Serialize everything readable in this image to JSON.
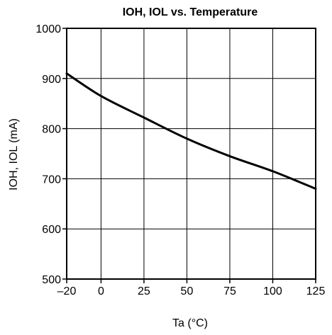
{
  "chart_data": {
    "type": "line",
    "title": "IOH, IOL vs. Temperature",
    "xlabel": "Ta (°C)",
    "ylabel": "IOH, IOL (mA)",
    "xlim": [
      -20,
      125
    ],
    "ylim": [
      500,
      1000
    ],
    "xticks": [
      -20,
      0,
      25,
      50,
      75,
      100,
      125
    ],
    "yticks": [
      500,
      600,
      700,
      800,
      900,
      1000
    ],
    "xtick_labels": [
      "–20",
      "0",
      "25",
      "50",
      "75",
      "100",
      "125"
    ],
    "ytick_labels": [
      "500",
      "600",
      "700",
      "800",
      "900",
      "1000"
    ],
    "grid": true,
    "series": [
      {
        "x": [
          -20,
          0,
          25,
          50,
          75,
          100,
          125
        ],
        "y": [
          910,
          865,
          822,
          780,
          745,
          715,
          680
        ]
      }
    ],
    "colors": {
      "line": "#000000",
      "grid": "#000000",
      "background": "#ffffff"
    }
  }
}
